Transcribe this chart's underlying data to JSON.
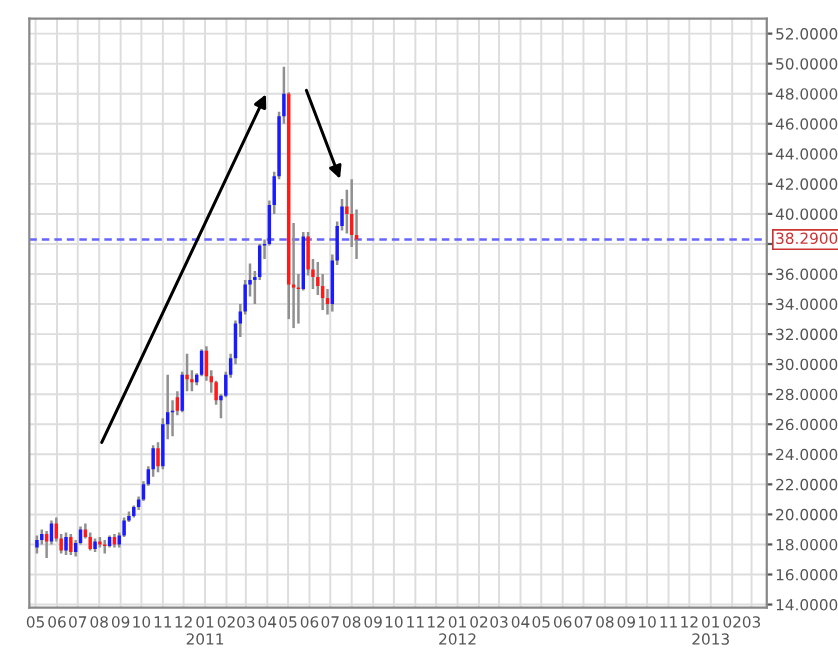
{
  "chart_data": {
    "type": "candlestick",
    "x": [
      "2010-05-03",
      "2010-05-10",
      "2010-05-17",
      "2010-05-24",
      "2010-05-31",
      "2010-06-07",
      "2010-06-14",
      "2010-06-21",
      "2010-06-28",
      "2010-07-05",
      "2010-07-12",
      "2010-07-19",
      "2010-07-26",
      "2010-08-02",
      "2010-08-09",
      "2010-08-16",
      "2010-08-23",
      "2010-08-30",
      "2010-09-06",
      "2010-09-13",
      "2010-09-20",
      "2010-09-27",
      "2010-10-04",
      "2010-10-11",
      "2010-10-18",
      "2010-10-25",
      "2010-11-01",
      "2010-11-08",
      "2010-11-15",
      "2010-11-22",
      "2010-11-29",
      "2010-12-06",
      "2010-12-13",
      "2010-12-20",
      "2010-12-27",
      "2011-01-03",
      "2011-01-10",
      "2011-01-17",
      "2011-01-24",
      "2011-01-31",
      "2011-02-07",
      "2011-02-14",
      "2011-02-21",
      "2011-02-28",
      "2011-03-07",
      "2011-03-14",
      "2011-03-21",
      "2011-03-28",
      "2011-04-04",
      "2011-04-11",
      "2011-04-18",
      "2011-04-25",
      "2011-05-02",
      "2011-05-09",
      "2011-05-16",
      "2011-05-23",
      "2011-05-30",
      "2011-06-06",
      "2011-06-13",
      "2011-06-20",
      "2011-06-27",
      "2011-07-04",
      "2011-07-11",
      "2011-07-18",
      "2011-07-25",
      "2011-08-01",
      "2011-08-08"
    ],
    "ohlc": [
      [
        17.8,
        18.6,
        17.4,
        18.3
      ],
      [
        18.3,
        19.0,
        18.0,
        18.7
      ],
      [
        18.7,
        18.9,
        17.1,
        18.2
      ],
      [
        18.2,
        19.6,
        18.0,
        19.4
      ],
      [
        19.4,
        19.8,
        18.2,
        18.4
      ],
      [
        18.4,
        18.7,
        17.4,
        17.6
      ],
      [
        17.6,
        18.8,
        17.3,
        18.5
      ],
      [
        18.5,
        18.7,
        17.3,
        17.5
      ],
      [
        17.5,
        18.3,
        17.2,
        18.1
      ],
      [
        18.1,
        19.2,
        18.0,
        19.0
      ],
      [
        19.0,
        19.4,
        18.4,
        18.5
      ],
      [
        18.5,
        18.8,
        17.6,
        17.7
      ],
      [
        17.7,
        18.4,
        17.5,
        18.2
      ],
      [
        18.2,
        18.5,
        17.8,
        18.0
      ],
      [
        18.0,
        18.3,
        17.4,
        17.9
      ],
      [
        17.9,
        18.6,
        17.8,
        18.5
      ],
      [
        18.5,
        18.7,
        17.8,
        18.0
      ],
      [
        18.0,
        18.8,
        17.8,
        18.6
      ],
      [
        18.6,
        19.8,
        18.5,
        19.6
      ],
      [
        19.6,
        20.2,
        19.5,
        19.9
      ],
      [
        19.9,
        20.6,
        19.8,
        20.5
      ],
      [
        20.5,
        21.2,
        20.3,
        21.0
      ],
      [
        21.0,
        22.2,
        20.9,
        22.0
      ],
      [
        22.0,
        23.2,
        21.9,
        23.0
      ],
      [
        23.0,
        24.6,
        22.5,
        24.4
      ],
      [
        24.4,
        24.8,
        22.8,
        23.2
      ],
      [
        23.2,
        26.4,
        23.0,
        26.0
      ],
      [
        26.0,
        29.3,
        25.0,
        26.8
      ],
      [
        26.8,
        27.6,
        25.2,
        26.9
      ],
      [
        27.8,
        28.2,
        26.6,
        26.9
      ],
      [
        26.9,
        29.5,
        26.8,
        29.3
      ],
      [
        29.3,
        30.7,
        28.2,
        29.0
      ],
      [
        29.0,
        29.6,
        28.2,
        28.8
      ],
      [
        28.8,
        29.4,
        28.6,
        29.3
      ],
      [
        29.3,
        31.0,
        29.2,
        30.9
      ],
      [
        30.9,
        31.2,
        28.9,
        29.2
      ],
      [
        29.2,
        29.6,
        28.1,
        28.8
      ],
      [
        28.8,
        28.9,
        27.3,
        27.6
      ],
      [
        27.6,
        28.0,
        26.4,
        27.9
      ],
      [
        27.9,
        29.5,
        27.8,
        29.3
      ],
      [
        29.3,
        30.7,
        29.1,
        30.4
      ],
      [
        30.4,
        32.9,
        30.0,
        32.7
      ],
      [
        32.7,
        34.0,
        31.8,
        33.5
      ],
      [
        33.5,
        35.6,
        33.3,
        35.3
      ],
      [
        35.3,
        36.7,
        34.5,
        35.6
      ],
      [
        35.6,
        36.2,
        34.0,
        35.8
      ],
      [
        35.8,
        38.0,
        35.6,
        37.9
      ],
      [
        37.9,
        38.3,
        37.0,
        38.0
      ],
      [
        38.0,
        40.9,
        37.9,
        40.6
      ],
      [
        40.6,
        42.8,
        40.0,
        42.5
      ],
      [
        42.5,
        46.8,
        42.3,
        46.5
      ],
      [
        46.5,
        49.8,
        46.0,
        48.0
      ],
      [
        48.0,
        48.1,
        33.0,
        35.3
      ],
      [
        35.3,
        39.4,
        32.4,
        35.1
      ],
      [
        35.1,
        36.0,
        32.7,
        35.0
      ],
      [
        35.0,
        38.8,
        34.9,
        38.5
      ],
      [
        38.5,
        38.8,
        35.9,
        36.3
      ],
      [
        36.3,
        37.0,
        35.0,
        35.8
      ],
      [
        35.8,
        36.8,
        34.6,
        35.2
      ],
      [
        35.2,
        36.0,
        33.6,
        34.4
      ],
      [
        34.4,
        35.0,
        33.3,
        34.0
      ],
      [
        34.0,
        37.3,
        33.5,
        36.9
      ],
      [
        36.9,
        39.5,
        36.6,
        39.2
      ],
      [
        39.2,
        41.0,
        38.9,
        40.5
      ],
      [
        40.5,
        41.6,
        38.7,
        40.0
      ],
      [
        40.0,
        42.3,
        37.8,
        38.6
      ],
      [
        38.6,
        40.3,
        37.0,
        38.29
      ]
    ],
    "xlim": [
      "2010-04-22",
      "2013-03-23"
    ],
    "xticks": [
      {
        "value": "2010-05-01",
        "label": "05"
      },
      {
        "value": "2010-06-01",
        "label": "06"
      },
      {
        "value": "2010-07-01",
        "label": "07"
      },
      {
        "value": "2010-08-01",
        "label": "08"
      },
      {
        "value": "2010-09-01",
        "label": "09"
      },
      {
        "value": "2010-10-01",
        "label": "10"
      },
      {
        "value": "2010-11-01",
        "label": "11"
      },
      {
        "value": "2010-12-01",
        "label": "12"
      },
      {
        "value": "2011-01-01",
        "label": "01\n2011"
      },
      {
        "value": "2011-02-01",
        "label": "02"
      },
      {
        "value": "2011-03-01",
        "label": "03"
      },
      {
        "value": "2011-04-01",
        "label": "04"
      },
      {
        "value": "2011-05-01",
        "label": "05"
      },
      {
        "value": "2011-06-01",
        "label": "06"
      },
      {
        "value": "2011-07-01",
        "label": "07"
      },
      {
        "value": "2011-08-01",
        "label": "08"
      },
      {
        "value": "2011-09-01",
        "label": "09"
      },
      {
        "value": "2011-10-01",
        "label": "10"
      },
      {
        "value": "2011-11-01",
        "label": "11"
      },
      {
        "value": "2011-12-01",
        "label": "12"
      },
      {
        "value": "2012-01-01",
        "label": "01\n2012"
      },
      {
        "value": "2012-02-01",
        "label": "02"
      },
      {
        "value": "2012-03-01",
        "label": "03"
      },
      {
        "value": "2012-04-01",
        "label": "04"
      },
      {
        "value": "2012-05-01",
        "label": "05"
      },
      {
        "value": "2012-06-01",
        "label": "06"
      },
      {
        "value": "2012-07-01",
        "label": "07"
      },
      {
        "value": "2012-08-01",
        "label": "08"
      },
      {
        "value": "2012-09-01",
        "label": "09"
      },
      {
        "value": "2012-10-01",
        "label": "10"
      },
      {
        "value": "2012-11-01",
        "label": "11"
      },
      {
        "value": "2012-12-01",
        "label": "12"
      },
      {
        "value": "2013-01-01",
        "label": "01\n2013"
      },
      {
        "value": "2013-02-01",
        "label": "02"
      },
      {
        "value": "2013-03-01",
        "label": "03"
      }
    ],
    "ylim": [
      13.8,
      53.0
    ],
    "yticks": [
      {
        "value": 14,
        "label": "14.0000"
      },
      {
        "value": 16,
        "label": "16.0000"
      },
      {
        "value": 18,
        "label": "18.0000"
      },
      {
        "value": 20,
        "label": "20.0000"
      },
      {
        "value": 22,
        "label": "22.0000"
      },
      {
        "value": 24,
        "label": "24.0000"
      },
      {
        "value": 26,
        "label": "26.0000"
      },
      {
        "value": 28,
        "label": "28.0000"
      },
      {
        "value": 30,
        "label": "30.0000"
      },
      {
        "value": 32,
        "label": "32.0000"
      },
      {
        "value": 34,
        "label": "34.0000"
      },
      {
        "value": 36,
        "label": "36.0000"
      },
      {
        "value": 38,
        "label": null
      },
      {
        "value": 40,
        "label": "40.0000"
      },
      {
        "value": 42,
        "label": "42.0000"
      },
      {
        "value": 44,
        "label": "44.0000"
      },
      {
        "value": 46,
        "label": "46.0000"
      },
      {
        "value": 48,
        "label": "48.0000"
      },
      {
        "value": 50,
        "label": "50.0000"
      },
      {
        "value": 52,
        "label": "52.0000"
      }
    ],
    "ref_lines": [
      {
        "axis": "y",
        "value": 38.29,
        "label": "38.2900",
        "color": "#6666ff",
        "line_style": "dashed"
      }
    ],
    "grid": true,
    "legend": false
  }
}
